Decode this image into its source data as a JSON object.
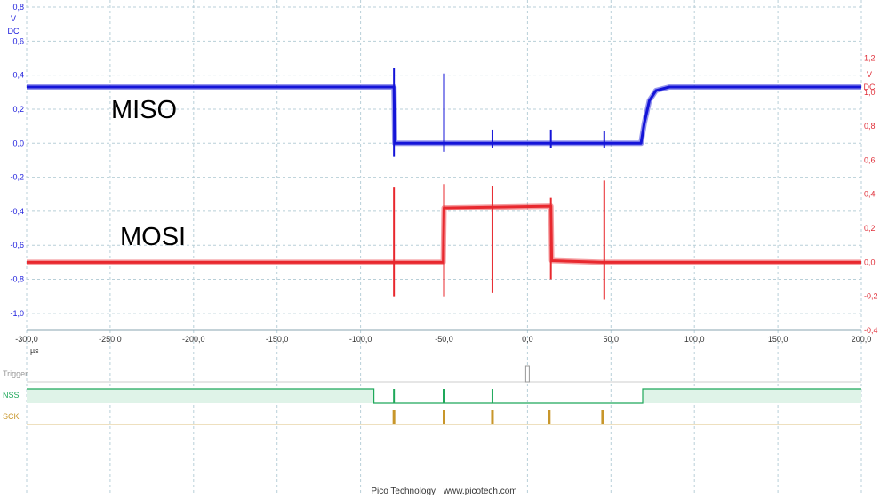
{
  "chart_data": {
    "type": "line",
    "x_unit": "µs",
    "xlim": [
      -300,
      200
    ],
    "x_ticks": [
      -300,
      -250,
      -200,
      -150,
      -100,
      -50,
      0,
      50,
      100,
      150,
      200
    ],
    "x_tick_labels": [
      "-300,0",
      "-250,0",
      "-200,0",
      "-150,0",
      "-100,0",
      "-50,0",
      "0,0",
      "50,0",
      "100,0",
      "150,0",
      "200,0"
    ],
    "axes": {
      "left": {
        "unit": "V",
        "coupling": "DC",
        "color": "#1a1adc",
        "ylim": [
          -1.1,
          0.8
        ],
        "ticks": [
          0.8,
          0.6,
          0.4,
          0.2,
          0.0,
          -0.2,
          -0.4,
          -0.6,
          -0.8,
          -1.0
        ],
        "tick_labels": [
          "0,8",
          "0,6",
          "0,4",
          "0,2",
          "0,0",
          "-0,2",
          "-0,4",
          "-0,6",
          "-0,8",
          "-1,0"
        ]
      },
      "right": {
        "unit": "V",
        "coupling": "DC",
        "color": "#e0303a",
        "ylim": [
          -0.4,
          1.5
        ],
        "ticks": [
          1.2,
          1.0,
          0.8,
          0.6,
          0.4,
          0.2,
          0.0,
          -0.2,
          -0.4
        ],
        "tick_labels": [
          "1,2",
          "1,0",
          "0,8",
          "0,6",
          "0,4",
          "0,2",
          "0,0",
          "-0,2",
          "-0,4"
        ]
      }
    },
    "grid": true,
    "series": [
      {
        "name": "MISO",
        "axis": "left",
        "color": "#1414d8",
        "points": [
          [
            -300,
            0.33
          ],
          [
            -80,
            0.33
          ],
          [
            -79.5,
            0.0
          ],
          [
            68,
            0.0
          ],
          [
            70,
            0.12
          ],
          [
            73,
            0.25
          ],
          [
            77,
            0.31
          ],
          [
            85,
            0.33
          ],
          [
            200,
            0.33
          ]
        ],
        "spikes": [
          [
            -80,
            0.44,
            -0.08
          ],
          [
            -50,
            0.41,
            -0.05
          ],
          [
            -21,
            0.08,
            -0.03
          ],
          [
            14,
            0.08,
            -0.03
          ],
          [
            46,
            0.07,
            -0.03
          ]
        ]
      },
      {
        "name": "MOSI",
        "axis": "right",
        "color": "#e8282e",
        "points": [
          [
            -300,
            0.0
          ],
          [
            -50.5,
            0.0
          ],
          [
            -50,
            0.32
          ],
          [
            14,
            0.33
          ],
          [
            14.5,
            0.01
          ],
          [
            45,
            0.0
          ],
          [
            46,
            0.0
          ],
          [
            200,
            0.0
          ]
        ],
        "spikes": [
          [
            -80,
            0.44,
            -0.2
          ],
          [
            -50,
            0.46,
            -0.2
          ],
          [
            -21,
            0.45,
            -0.18
          ],
          [
            14,
            0.38,
            -0.1
          ],
          [
            46,
            0.48,
            -0.22
          ]
        ]
      }
    ],
    "digital": {
      "channels": [
        {
          "name": "Trigger",
          "color": "#999999",
          "type": "trigger",
          "marker_at": 0
        },
        {
          "name": "NSS",
          "color": "#1ea85a",
          "type": "level",
          "fill": "#dff3e8",
          "segments": [
            [
              -300,
              -92,
              1
            ],
            [
              -92,
              69,
              0
            ],
            [
              69,
              200,
              1
            ]
          ],
          "pulses": [
            -80,
            -50,
            -21
          ]
        },
        {
          "name": "SCK",
          "color": "#c8962a",
          "type": "pulses",
          "pulses": [
            -80,
            -50,
            -21,
            13,
            45
          ]
        }
      ]
    }
  },
  "labels": {
    "miso": "MISO",
    "mosi": "MOSI"
  },
  "footer": {
    "brand": "Pico Technology",
    "url": "www.picotech.com"
  }
}
